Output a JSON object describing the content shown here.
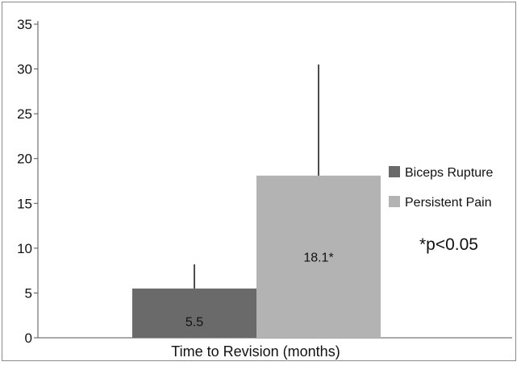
{
  "chart_data": {
    "type": "bar",
    "categories": [
      "Time to Revision (months)"
    ],
    "series": [
      {
        "name": "Biceps Rupture",
        "values": [
          5.5
        ],
        "error_upper": [
          8.2
        ],
        "label": "5.5",
        "color": "#6a6a6a"
      },
      {
        "name": "Persistent Pain",
        "values": [
          18.1
        ],
        "error_upper": [
          30.5
        ],
        "label": "18.1*",
        "color": "#b3b3b3"
      }
    ],
    "xlabel": "Time to Revision (months)",
    "ylim": [
      0,
      35
    ],
    "yticks": [
      "0",
      "5",
      "10",
      "15",
      "20",
      "25",
      "30",
      "35"
    ],
    "annotation": "*p<0.05",
    "grid": false,
    "legend": "right"
  }
}
